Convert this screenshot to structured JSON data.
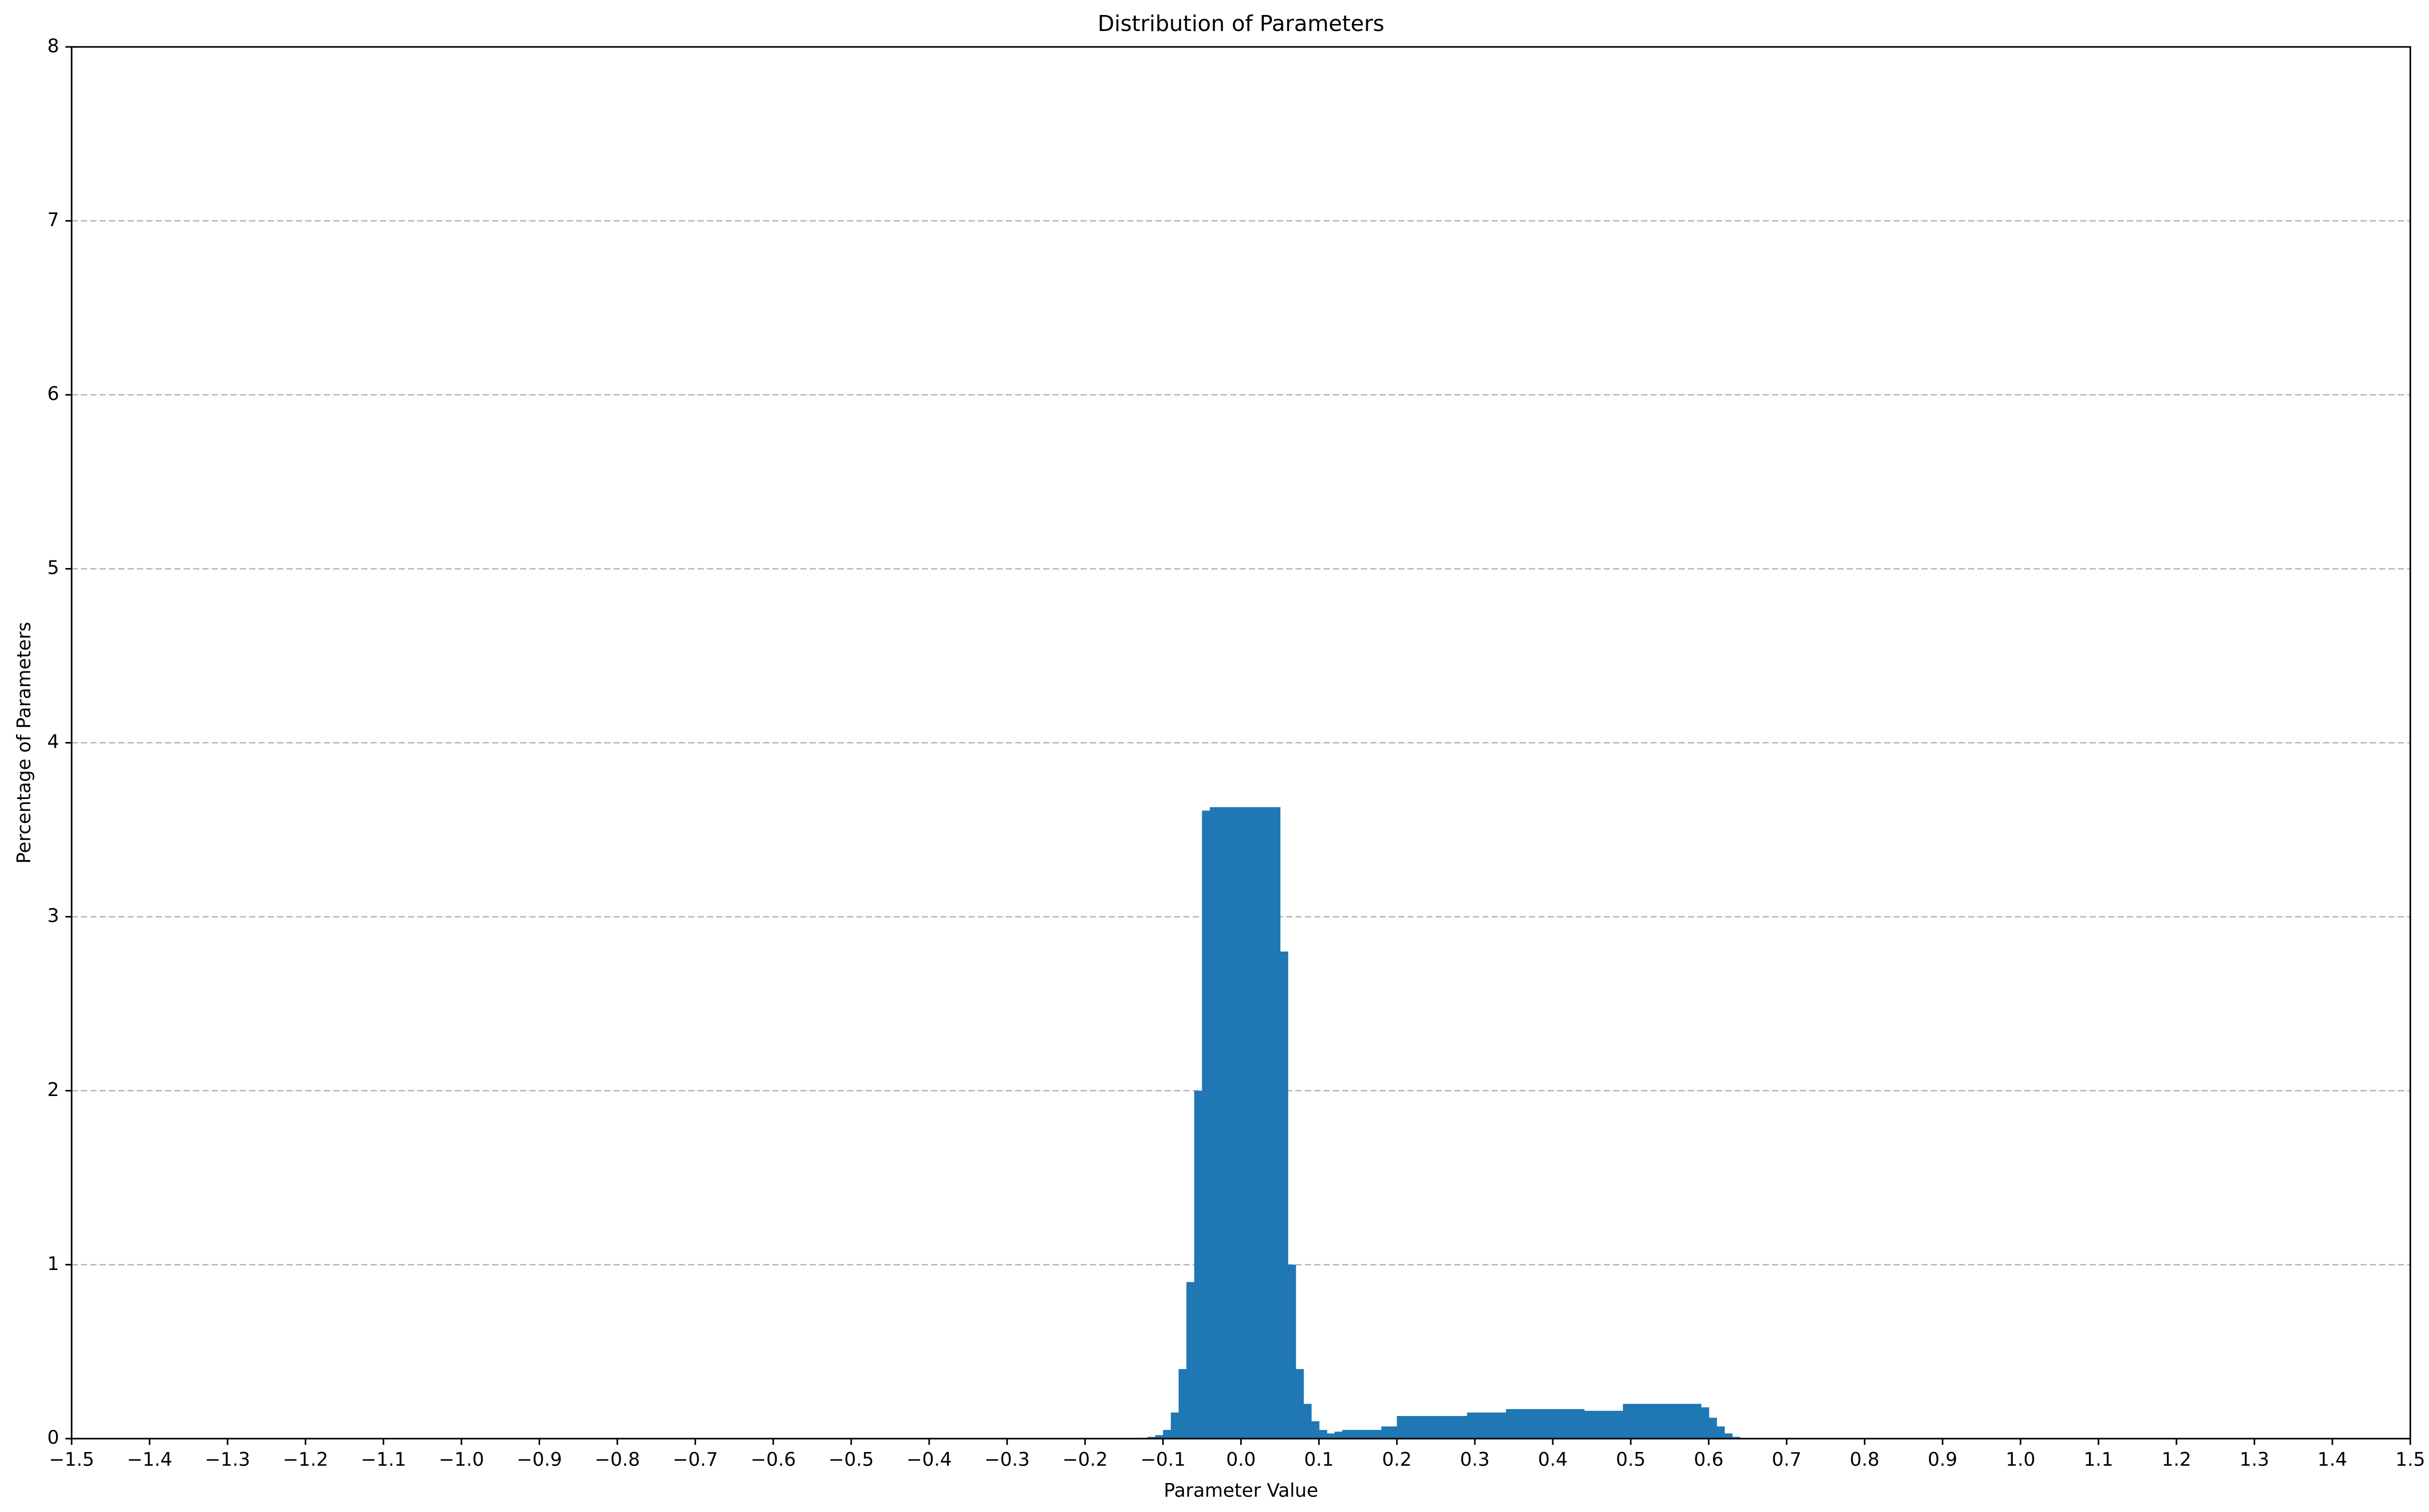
{
  "chart_data": {
    "type": "histogram",
    "title": "Distribution of Parameters",
    "xlabel": "Parameter Value",
    "ylabel": "Percentage of Parameters",
    "color": "#1f77b4",
    "grid": true,
    "bins": [
      -0.15,
      -0.14,
      -0.13,
      -0.12,
      -0.11,
      -0.1,
      -0.09,
      -0.08,
      -0.07,
      -0.06,
      -0.05,
      -0.04,
      -0.03,
      -0.02,
      -0.01,
      0,
      0.01,
      0.02,
      0.03,
      0.04,
      0.05,
      0.06,
      0.07,
      0.08,
      0.09,
      0.1,
      0.11,
      0.12,
      0.13,
      0.14,
      0.15,
      0.16,
      0.17,
      0.18,
      0.19,
      0.2,
      0.21,
      0.22,
      0.23,
      0.24,
      0.25,
      0.26,
      0.27,
      0.28,
      0.29,
      0.3,
      0.31,
      0.32,
      0.33,
      0.34,
      0.35,
      0.36,
      0.37,
      0.38,
      0.39,
      0.4,
      0.41,
      0.42,
      0.43,
      0.44,
      0.45,
      0.46,
      0.47,
      0.48,
      0.49,
      0.5,
      0.51,
      0.52,
      0.53,
      0.54,
      0.55,
      0.56,
      0.57,
      0.58,
      0.59,
      0.6,
      0.61,
      0.62,
      0.63,
      0.64,
      0.65
    ],
    "values": [
      0,
      0.002,
      0.005,
      0.01,
      0.02,
      0.05,
      0.15,
      0.4,
      0.9,
      2.0,
      3.61,
      3.63,
      3.63,
      3.63,
      3.63,
      3.63,
      3.63,
      3.63,
      3.63,
      3.63,
      2.8,
      1.0,
      0.4,
      0.2,
      0.1,
      0.05,
      0.03,
      0.04,
      0.05,
      0.05,
      0.05,
      0.05,
      0.05,
      0.07,
      0.07,
      0.13,
      0.13,
      0.13,
      0.13,
      0.13,
      0.13,
      0.13,
      0.13,
      0.13,
      0.15,
      0.15,
      0.15,
      0.15,
      0.15,
      0.17,
      0.17,
      0.17,
      0.17,
      0.17,
      0.17,
      0.17,
      0.17,
      0.17,
      0.17,
      0.16,
      0.16,
      0.16,
      0.16,
      0.16,
      0.2,
      0.2,
      0.2,
      0.2,
      0.2,
      0.2,
      0.2,
      0.2,
      0.2,
      0.2,
      0.18,
      0.12,
      0.07,
      0.03,
      0.01,
      0.003
    ],
    "xlim": [
      -1.5,
      1.5
    ],
    "xticks": [
      {
        "value": -1.5,
        "label": "−1.5"
      },
      {
        "value": -1.4,
        "label": "−1.4"
      },
      {
        "value": -1.3,
        "label": "−1.3"
      },
      {
        "value": -1.2,
        "label": "−1.2"
      },
      {
        "value": -1.1,
        "label": "−1.1"
      },
      {
        "value": -1.0,
        "label": "−1.0"
      },
      {
        "value": -0.9,
        "label": "−0.9"
      },
      {
        "value": -0.8,
        "label": "−0.8"
      },
      {
        "value": -0.7,
        "label": "−0.7"
      },
      {
        "value": -0.6,
        "label": "−0.6"
      },
      {
        "value": -0.5,
        "label": "−0.5"
      },
      {
        "value": -0.4,
        "label": "−0.4"
      },
      {
        "value": -0.3,
        "label": "−0.3"
      },
      {
        "value": -0.2,
        "label": "−0.2"
      },
      {
        "value": -0.1,
        "label": "−0.1"
      },
      {
        "value": 0,
        "label": "0.0"
      },
      {
        "value": 0.1,
        "label": "0.1"
      },
      {
        "value": 0.2,
        "label": "0.2"
      },
      {
        "value": 0.3,
        "label": "0.3"
      },
      {
        "value": 0.4,
        "label": "0.4"
      },
      {
        "value": 0.5,
        "label": "0.5"
      },
      {
        "value": 0.6,
        "label": "0.6"
      },
      {
        "value": 0.7,
        "label": "0.7"
      },
      {
        "value": 0.8,
        "label": "0.8"
      },
      {
        "value": 0.9,
        "label": "0.9"
      },
      {
        "value": 1.0,
        "label": "1.0"
      },
      {
        "value": 1.1,
        "label": "1.1"
      },
      {
        "value": 1.2,
        "label": "1.2"
      },
      {
        "value": 1.3,
        "label": "1.3"
      },
      {
        "value": 1.4,
        "label": "1.4"
      },
      {
        "value": 1.5,
        "label": "1.5"
      }
    ],
    "ylim": [
      0,
      8
    ],
    "yticks": [
      0,
      1,
      2,
      3,
      4,
      5,
      6,
      7,
      8
    ]
  }
}
